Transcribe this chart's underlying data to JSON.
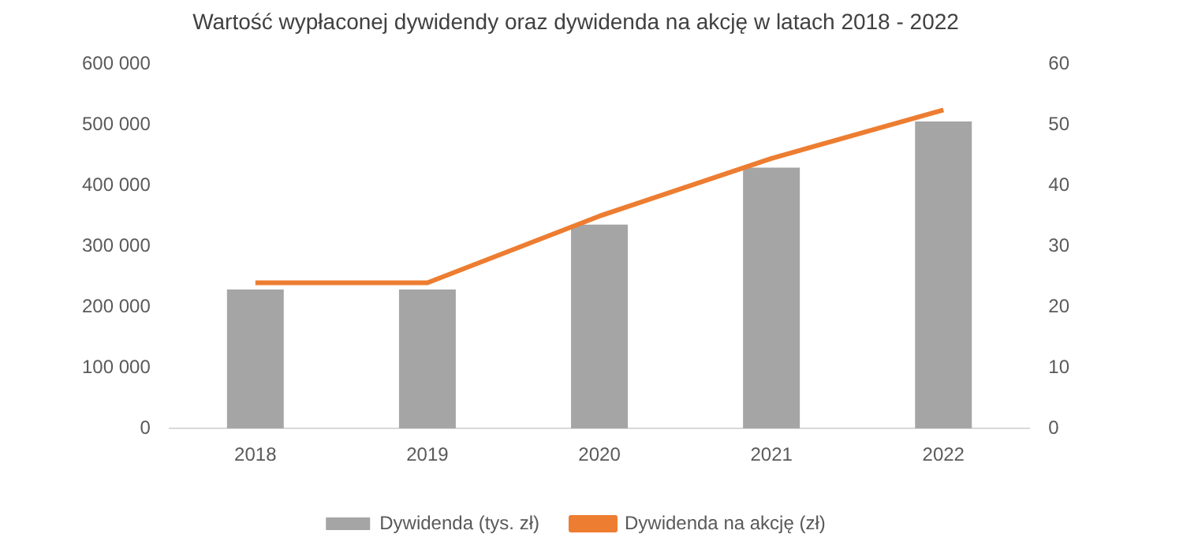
{
  "chart_data": {
    "type": "bar",
    "title": "Wartość wypłaconej dywidendy oraz dywidenda na akcję w latach 2018 - 2022",
    "categories": [
      "2018",
      "2019",
      "2020",
      "2021",
      "2022"
    ],
    "series": [
      {
        "name": "Dywidenda (tys. zł)",
        "color": "#a5a5a5",
        "values": [
          229000,
          229000,
          336000,
          430000,
          506000
        ]
      },
      {
        "name": "Dywidenda na akcję (zł)",
        "type": "line",
        "axis": "y2",
        "color": "#ed7d31",
        "values": [
          24,
          24,
          35,
          44.5,
          52.5
        ]
      }
    ],
    "ylim": [
      0,
      600000
    ],
    "yticks": [
      0,
      {
        "value": 100000,
        "label": "100 000"
      },
      {
        "value": 200000,
        "label": "200 000"
      },
      {
        "value": 300000,
        "label": "300 000"
      },
      {
        "value": 400000,
        "label": "400 000"
      },
      {
        "value": 500000,
        "label": "500 000"
      },
      {
        "value": 600000,
        "label": "600 000"
      }
    ],
    "y2lim": [
      0,
      60
    ],
    "y2ticks": [
      0,
      10,
      20,
      30,
      40,
      50,
      60
    ],
    "grid": false,
    "legend": "bottom",
    "marker": "none"
  }
}
